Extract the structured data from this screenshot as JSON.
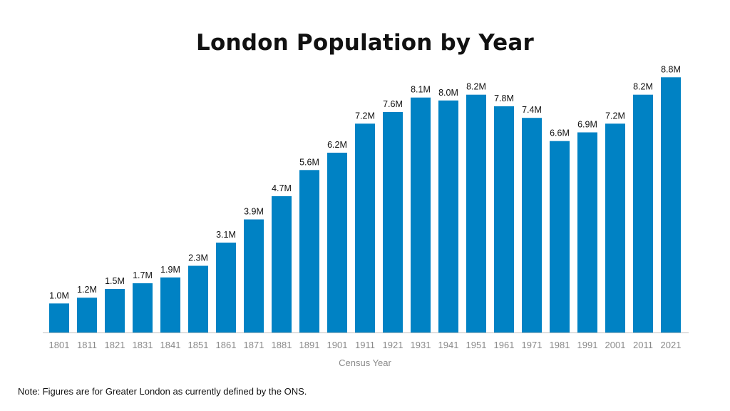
{
  "chart_data": {
    "type": "bar",
    "title": "London Population by Year",
    "xlabel": "Census Year",
    "ylabel": "",
    "ylim": [
      0,
      9.2
    ],
    "grid": false,
    "bar_color": "#0082C4",
    "axis_color": "#bfbfbf",
    "categories": [
      "1801",
      "1811",
      "1821",
      "1831",
      "1841",
      "1851",
      "1861",
      "1871",
      "1881",
      "1891",
      "1901",
      "1911",
      "1921",
      "1931",
      "1941",
      "1951",
      "1961",
      "1971",
      "1981",
      "1991",
      "2001",
      "2011",
      "2021"
    ],
    "values": [
      1.0,
      1.2,
      1.5,
      1.7,
      1.9,
      2.3,
      3.1,
      3.9,
      4.7,
      5.6,
      6.2,
      7.2,
      7.6,
      8.1,
      8.0,
      8.2,
      7.8,
      7.4,
      6.6,
      6.9,
      7.2,
      8.2,
      8.8
    ],
    "value_labels": [
      "1.0M",
      "1.2M",
      "1.5M",
      "1.7M",
      "1.9M",
      "2.3M",
      "3.1M",
      "3.9M",
      "4.7M",
      "5.6M",
      "6.2M",
      "7.2M",
      "7.6M",
      "8.1M",
      "8.0M",
      "8.2M",
      "7.8M",
      "7.4M",
      "6.6M",
      "6.9M",
      "7.2M",
      "8.2M",
      "8.8M"
    ]
  },
  "footnote": "Note: Figures are for Greater London as currently defined by the ONS."
}
